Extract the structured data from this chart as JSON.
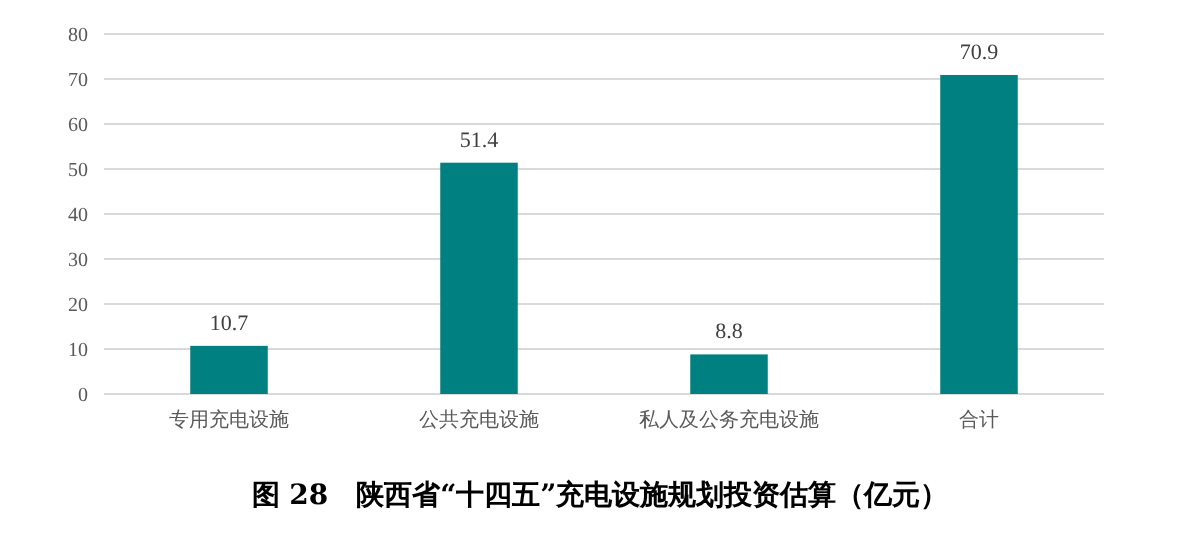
{
  "chart_data": {
    "type": "bar",
    "title": "图 28　陕西省“十四五”充电设施规划投资估算（亿元）",
    "categories": [
      "专用充电设施",
      "公共充电设施",
      "私人及公务充电设施",
      "合计"
    ],
    "values": [
      10.7,
      51.4,
      8.8,
      70.9
    ],
    "color": "#008080",
    "ylim": [
      0,
      80
    ],
    "yticks": [
      0,
      10,
      20,
      30,
      40,
      50,
      60,
      70,
      80
    ],
    "grid": "y",
    "data_labels": true
  }
}
